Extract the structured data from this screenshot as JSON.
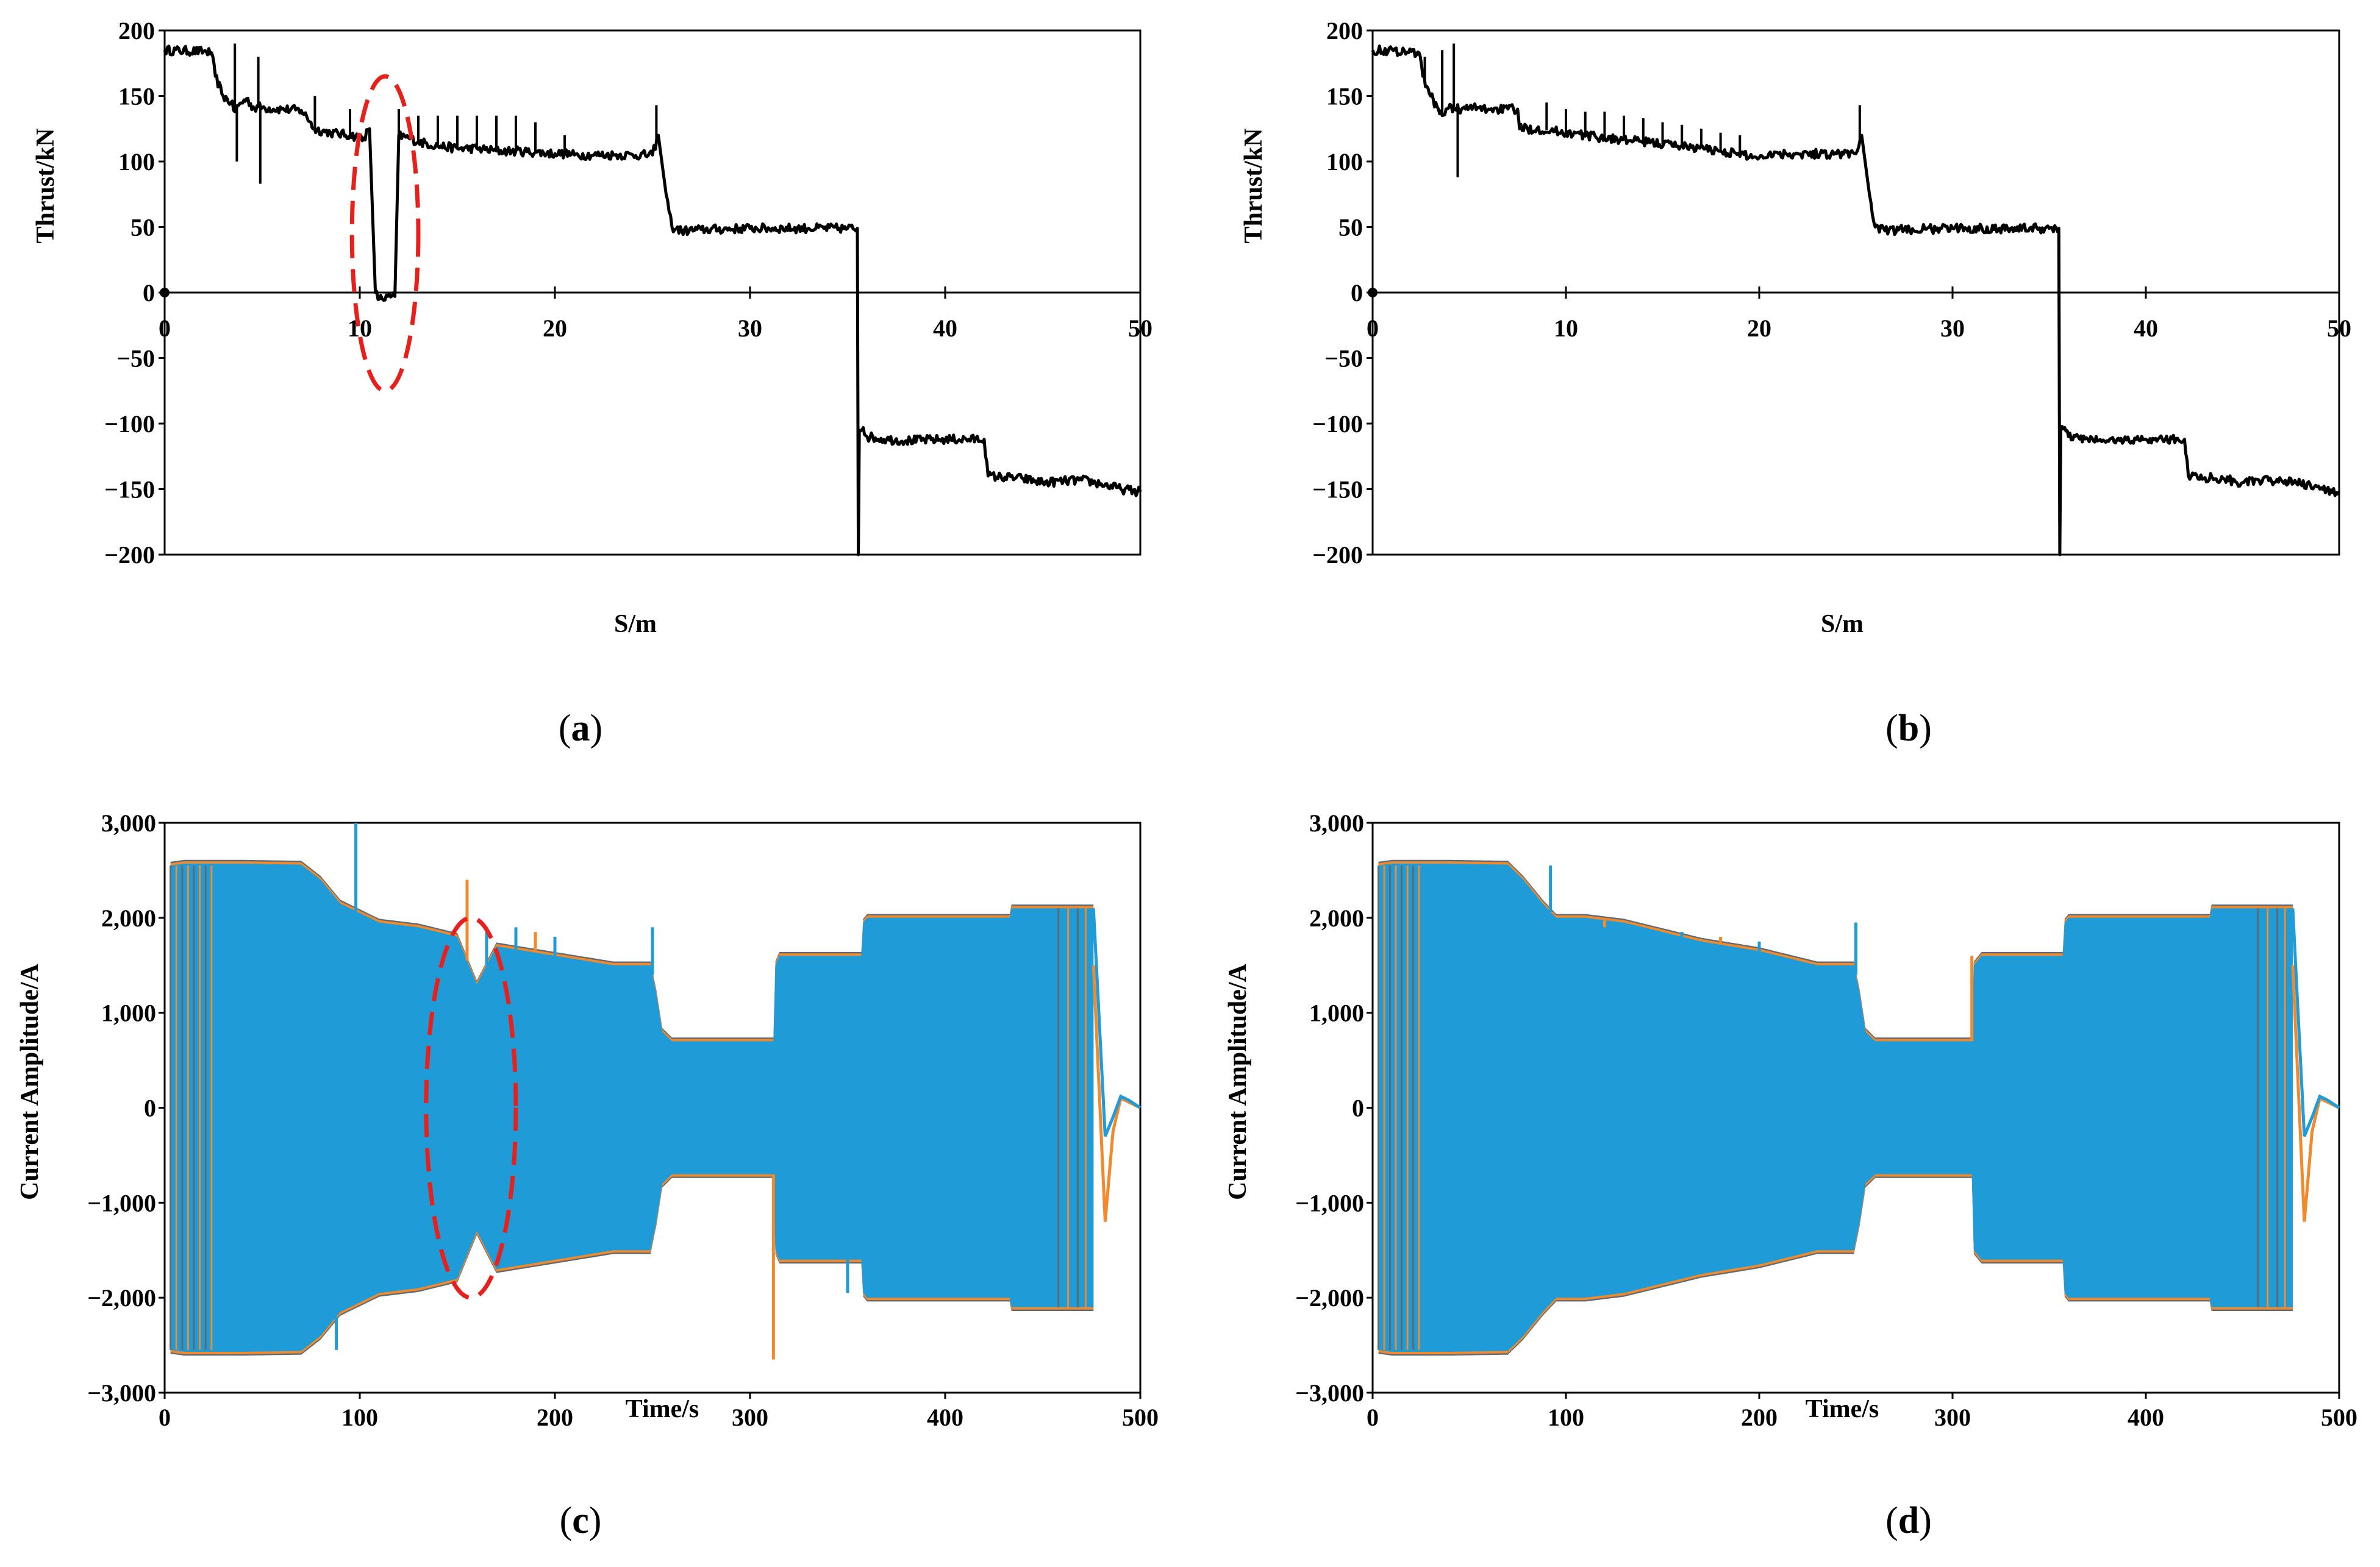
{
  "chart_data": [
    {
      "id": "a",
      "type": "line",
      "caption_letter": "a",
      "xlabel": "S/m",
      "ylabel": "Thrust/kN",
      "xlim": [
        0,
        50
      ],
      "ylim": [
        -200,
        200
      ],
      "xticks": [
        "0",
        "10",
        "20",
        "30",
        "40",
        "50"
      ],
      "yticks": [
        "200",
        "150",
        "100",
        "50",
        "0",
        "−50",
        "−100",
        "−150",
        "−200"
      ],
      "line_color": "#000000",
      "annotation": {
        "type": "dashed-ellipse",
        "color": "#e8201c",
        "center": [
          11.3,
          45
        ],
        "radius": [
          1.7,
          120
        ]
      },
      "series": [
        {
          "name": "thrust",
          "x": [
            0,
            2.0,
            2.4,
            2.6,
            3.0,
            3.4,
            3.6,
            3.8,
            4.2,
            4.6,
            4.8,
            5.0,
            6.0,
            7.0,
            7.5,
            7.6,
            8.5,
            9.5,
            10.2,
            10.5,
            10.8,
            11.0,
            11.8,
            12.0,
            12.5,
            13.0,
            14.0,
            15.0,
            16.0,
            17.0,
            18.0,
            19.0,
            20.0,
            20.5,
            21.0,
            22.0,
            23.0,
            24.0,
            25.0,
            25.3,
            25.7,
            26.0,
            26.5,
            27.5,
            30.0,
            33.0,
            35.0,
            35.5,
            35.55,
            35.6,
            35.8,
            36.0,
            37.0,
            38.0,
            40.0,
            42.0,
            42.2,
            44.0,
            45.0,
            47.0,
            48.0,
            49.0,
            50.0
          ],
          "values": [
            185,
            184,
            183,
            165,
            150,
            145,
            138,
            143,
            148,
            140,
            142,
            141,
            140,
            139,
            130,
            125,
            122,
            120,
            118,
            125,
            0,
            -5,
            -3,
            120,
            118,
            115,
            112,
            110,
            110,
            108,
            108,
            107,
            106,
            106,
            105,
            105,
            105,
            105,
            105,
            120,
            75,
            50,
            47,
            48,
            49,
            49,
            49,
            49,
            -200,
            -105,
            -103,
            -110,
            -112,
            -113,
            -112,
            -112,
            -140,
            -142,
            -145,
            -143,
            -146,
            -150,
            -152
          ]
        }
      ],
      "spikes": [
        [
          3.6,
          190
        ],
        [
          3.7,
          100
        ],
        [
          4.8,
          180
        ],
        [
          4.9,
          83
        ],
        [
          7.7,
          150
        ],
        [
          9.5,
          140
        ],
        [
          12.0,
          140
        ],
        [
          13.0,
          135
        ],
        [
          14.0,
          135
        ],
        [
          15.0,
          135
        ],
        [
          16.0,
          135
        ],
        [
          17.0,
          135
        ],
        [
          18.0,
          135
        ],
        [
          19.0,
          130
        ],
        [
          20.5,
          120
        ],
        [
          25.2,
          143
        ]
      ]
    },
    {
      "id": "b",
      "type": "line",
      "caption_letter": "b",
      "xlabel": "S/m",
      "ylabel": "Thrust/kN",
      "xlim": [
        0,
        50
      ],
      "ylim": [
        -200,
        200
      ],
      "xticks": [
        "0",
        "10",
        "20",
        "30",
        "40",
        "50"
      ],
      "yticks": [
        "200",
        "150",
        "100",
        "50",
        "0",
        "−50",
        "−100",
        "−150",
        "−200"
      ],
      "line_color": "#000000",
      "series": [
        {
          "name": "thrust",
          "x": [
            0,
            2.0,
            2.4,
            2.6,
            3.0,
            3.4,
            3.6,
            3.8,
            4.2,
            4.6,
            4.8,
            5.0,
            6.0,
            7.0,
            7.5,
            7.6,
            8.5,
            10.0,
            12.0,
            14.0,
            16.0,
            18.0,
            20.0,
            20.5,
            21.0,
            22.0,
            24.0,
            25.0,
            25.3,
            25.7,
            26.0,
            26.5,
            27.5,
            30.0,
            33.0,
            35.0,
            35.5,
            35.55,
            35.6,
            35.8,
            36.0,
            37.0,
            38.0,
            40.0,
            42.0,
            42.2,
            44.0,
            45.0,
            47.0,
            48.0,
            49.0,
            50.0
          ],
          "values": [
            185,
            184,
            183,
            165,
            150,
            140,
            135,
            140,
            141,
            140,
            140,
            141,
            140,
            140,
            140,
            125,
            125,
            122,
            118,
            115,
            112,
            108,
            103,
            106,
            106,
            106,
            106,
            106,
            120,
            75,
            50,
            47,
            48,
            49,
            49,
            49,
            49,
            -200,
            -105,
            -103,
            -110,
            -112,
            -113,
            -112,
            -112,
            -140,
            -142,
            -145,
            -143,
            -146,
            -150,
            -152
          ]
        }
      ],
      "spikes": [
        [
          2.7,
          180
        ],
        [
          3.6,
          185
        ],
        [
          4.2,
          190
        ],
        [
          4.4,
          88
        ],
        [
          9.0,
          145
        ],
        [
          10.0,
          140
        ],
        [
          11.0,
          138
        ],
        [
          12.0,
          138
        ],
        [
          13.0,
          135
        ],
        [
          14.0,
          133
        ],
        [
          15.0,
          130
        ],
        [
          16.0,
          128
        ],
        [
          17.0,
          125
        ],
        [
          18.0,
          122
        ],
        [
          19.0,
          120
        ],
        [
          25.2,
          143
        ]
      ]
    },
    {
      "id": "c",
      "type": "area",
      "caption_letter": "c",
      "xlabel": "Time/s",
      "ylabel": "Current  Amplitude/A",
      "xlim": [
        0,
        500
      ],
      "ylim": [
        -3000,
        3000
      ],
      "xticks": [
        "0",
        "100",
        "200",
        "300",
        "400",
        "500"
      ],
      "yticks": [
        "3,000",
        "2,000",
        "1,000",
        "0",
        "−1,000",
        "−2,000",
        "−3,000"
      ],
      "colors": {
        "phase_a": "#1f9bd7",
        "phase_b": "#f08a2c",
        "phase_c": "#5f6a74"
      },
      "annotation": {
        "type": "dashed-ellipse",
        "color": "#e8201c",
        "center": [
          157,
          0
        ],
        "radius": [
          23,
          2000
        ]
      },
      "envelope": {
        "t": [
          3,
          10,
          40,
          70,
          80,
          90,
          100,
          110,
          130,
          150,
          160,
          170,
          200,
          230,
          249,
          252,
          255,
          260,
          265,
          312,
          313,
          315,
          320,
          357,
          358,
          360,
          400,
          433,
          434,
          440,
          470,
          476
        ],
        "amp": [
          2550,
          2570,
          2570,
          2560,
          2400,
          2150,
          2050,
          1950,
          1900,
          1800,
          1300,
          1700,
          1600,
          1500,
          1500,
          1200,
          800,
          700,
          700,
          700,
          1500,
          1600,
          1600,
          1600,
          1950,
          2000,
          2000,
          2000,
          2100,
          2100,
          2100,
          2100
        ]
      },
      "spikes": [
        [
          98,
          3000
        ],
        [
          155,
          2400
        ],
        [
          165,
          1900
        ],
        [
          180,
          1900
        ],
        [
          190,
          1850
        ],
        [
          200,
          1800
        ],
        [
          250,
          1900
        ],
        [
          312,
          -2650
        ],
        [
          88,
          -2550
        ],
        [
          350,
          -1950
        ]
      ],
      "tail": {
        "t": [
          476,
          482,
          486,
          490,
          494,
          500
        ],
        "blue": [
          2100,
          -300,
          -100,
          120,
          80,
          0
        ],
        "orange": [
          1500,
          -1200,
          -250,
          100,
          60,
          0
        ]
      }
    },
    {
      "id": "d",
      "type": "area",
      "caption_letter": "d",
      "xlabel": "Time/s",
      "ylabel": "Current  Amplitude/A",
      "xlim": [
        0,
        500
      ],
      "ylim": [
        -3000,
        3000
      ],
      "xticks": [
        "0",
        "100",
        "200",
        "300",
        "400",
        "500"
      ],
      "yticks": [
        "3,000",
        "2,000",
        "1,000",
        "0",
        "−1,000",
        "−2,000",
        "−3,000"
      ],
      "colors": {
        "phase_a": "#1f9bd7",
        "phase_b": "#f08a2c",
        "phase_c": "#5f6a74"
      },
      "envelope": {
        "t": [
          3,
          10,
          40,
          70,
          78,
          88,
          95,
          110,
          130,
          150,
          170,
          200,
          230,
          249,
          252,
          255,
          260,
          265,
          310,
          311,
          315,
          320,
          357,
          358,
          360,
          400,
          433,
          434,
          440,
          470,
          476
        ],
        "amp": [
          2550,
          2570,
          2570,
          2560,
          2400,
          2150,
          2000,
          2000,
          1950,
          1850,
          1750,
          1650,
          1500,
          1500,
          1200,
          800,
          700,
          700,
          700,
          1500,
          1600,
          1600,
          1600,
          1950,
          2000,
          2000,
          2000,
          2100,
          2100,
          2100,
          2100
        ]
      },
      "spikes": [
        [
          92,
          2550
        ],
        [
          120,
          1900
        ],
        [
          140,
          1900
        ],
        [
          160,
          1850
        ],
        [
          180,
          1800
        ],
        [
          200,
          1750
        ],
        [
          250,
          1950
        ],
        [
          310,
          1600
        ]
      ],
      "tail": {
        "t": [
          476,
          482,
          486,
          490,
          494,
          500
        ],
        "blue": [
          2100,
          -300,
          -100,
          120,
          80,
          0
        ],
        "orange": [
          1500,
          -1200,
          -250,
          100,
          60,
          0
        ]
      }
    }
  ],
  "captions": {
    "a": "a",
    "b": "b",
    "c": "c",
    "d": "d"
  }
}
